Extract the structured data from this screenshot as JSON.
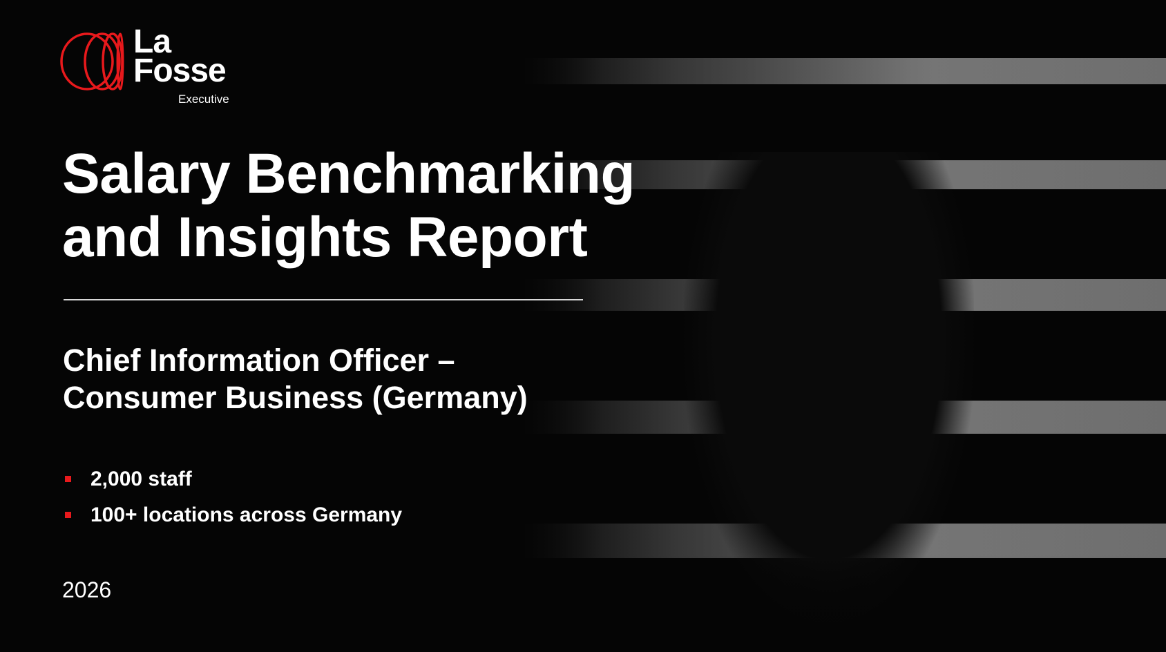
{
  "brand": {
    "name_line1": "La",
    "name_line2": "Fosse",
    "division": "Executive",
    "accent_color": "#e8191c"
  },
  "title": {
    "line1": "Salary Benchmarking",
    "line2": "and Insights Report"
  },
  "subtitle": {
    "line1": "Chief Information Officer –",
    "line2": "Consumer Business (Germany)"
  },
  "bullets": [
    {
      "text": "2,000 staff"
    },
    {
      "text": "100+ locations across Germany"
    }
  ],
  "year": "2026"
}
